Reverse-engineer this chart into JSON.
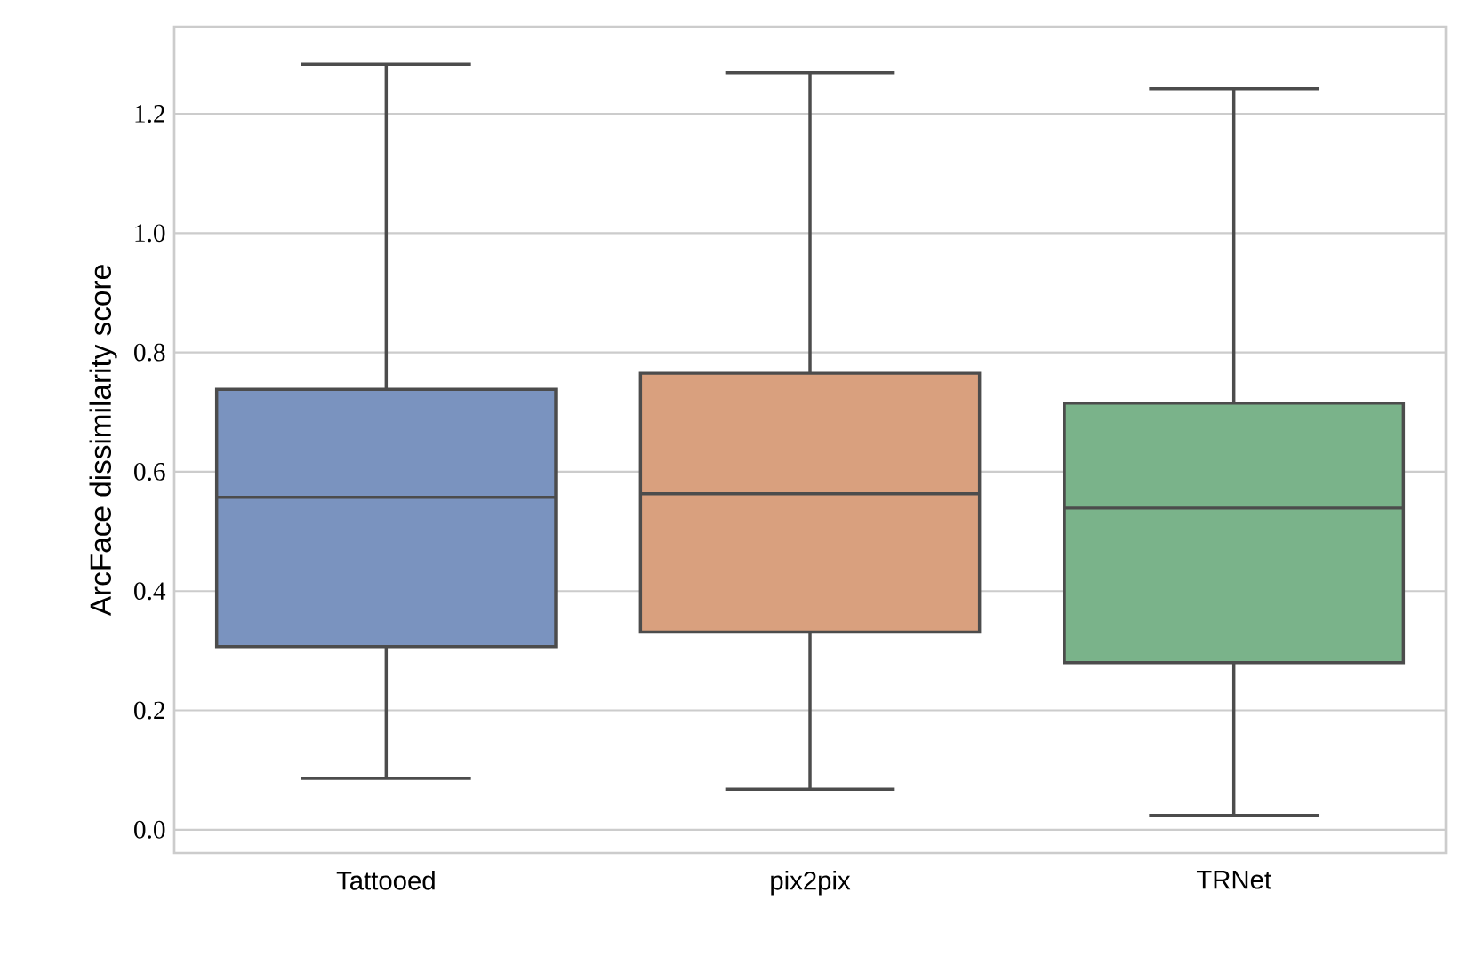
{
  "chart_data": {
    "type": "box",
    "ylabel": "ArcFace dissimilarity score",
    "categories": [
      "Tattooed",
      "pix2pix",
      "TRNet"
    ],
    "colors": [
      "#7a93bf",
      "#d9a07e",
      "#7ab38a"
    ],
    "boxes": [
      {
        "low": 0.086,
        "q1": 0.307,
        "median": 0.557,
        "q3": 0.738,
        "high": 1.283
      },
      {
        "low": 0.068,
        "q1": 0.331,
        "median": 0.563,
        "q3": 0.765,
        "high": 1.269
      },
      {
        "low": 0.024,
        "q1": 0.28,
        "median": 0.539,
        "q3": 0.715,
        "high": 1.242
      }
    ],
    "ylim": [
      -0.039,
      1.346
    ],
    "yticks": [
      {
        "value": 0,
        "label": "0.0"
      },
      0.2,
      0.4,
      0.6,
      0.8,
      {
        "value": 1,
        "label": "1.0"
      },
      1.2
    ],
    "grid": "y"
  }
}
